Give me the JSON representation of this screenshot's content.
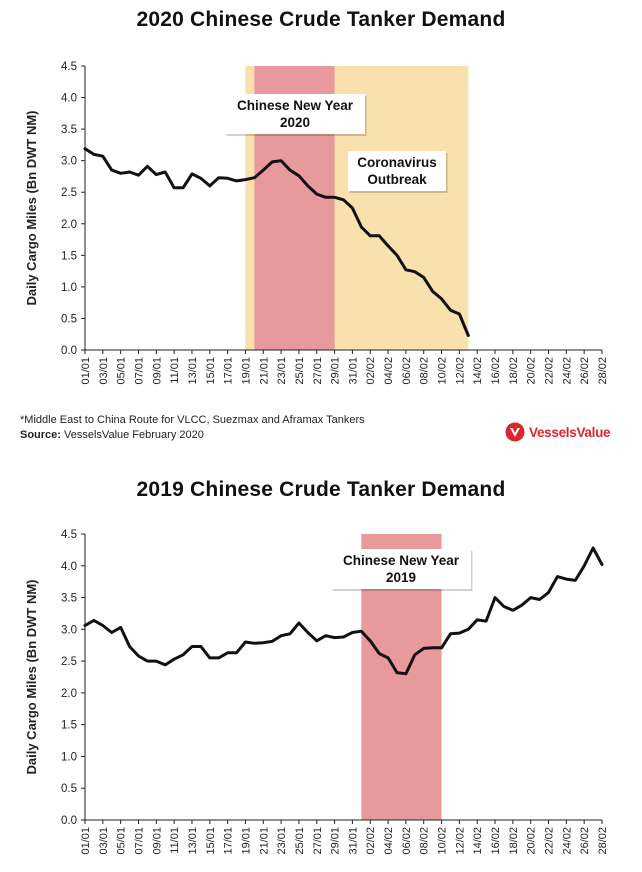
{
  "chart_data": [
    {
      "type": "line",
      "title": "2020 Chinese Crude Tanker Demand",
      "ylabel": "Daily Cargo Miles (Bn DWT NM)",
      "ylim": [
        0,
        4.5
      ],
      "yticks": [
        "0.0",
        "0.5",
        "1.0",
        "1.5",
        "2.0",
        "2.5",
        "3.0",
        "3.5",
        "4.0",
        "4.5"
      ],
      "xticks": [
        "01/01",
        "03/01",
        "05/01",
        "07/01",
        "09/01",
        "11/01",
        "13/01",
        "15/01",
        "17/01",
        "19/01",
        "21/01",
        "23/01",
        "25/01",
        "27/01",
        "29/01",
        "31/01",
        "02/02",
        "04/02",
        "06/02",
        "08/02",
        "10/02",
        "12/02",
        "14/02",
        "16/02",
        "18/02",
        "20/02",
        "22/02",
        "24/02",
        "26/02",
        "28/02"
      ],
      "x": [
        "01/01",
        "02/01",
        "03/01",
        "04/01",
        "05/01",
        "06/01",
        "07/01",
        "08/01",
        "09/01",
        "10/01",
        "11/01",
        "12/01",
        "13/01",
        "14/01",
        "15/01",
        "16/01",
        "17/01",
        "18/01",
        "19/01",
        "20/01",
        "21/01",
        "22/01",
        "23/01",
        "24/01",
        "25/01",
        "26/01",
        "27/01",
        "28/01",
        "29/01",
        "30/01",
        "31/01",
        "01/02",
        "02/02",
        "03/02",
        "04/02",
        "05/02",
        "06/02",
        "07/02",
        "08/02",
        "09/02",
        "10/02",
        "11/02",
        "12/02",
        "13/02"
      ],
      "series": [
        {
          "values": [
            3.19,
            3.1,
            3.07,
            2.85,
            2.8,
            2.82,
            2.77,
            2.91,
            2.78,
            2.82,
            2.57,
            2.57,
            2.79,
            2.72,
            2.6,
            2.73,
            2.72,
            2.68,
            2.7,
            2.73,
            2.85,
            2.98,
            3.0,
            2.85,
            2.76,
            2.6,
            2.47,
            2.42,
            2.42,
            2.38,
            2.25,
            1.95,
            1.81,
            1.81,
            1.65,
            1.5,
            1.27,
            1.24,
            1.15,
            0.93,
            0.81,
            0.63,
            0.57,
            0.23
          ]
        }
      ],
      "bands": [
        {
          "from": "19/01",
          "to": "13/02",
          "color": "#f9e1ad"
        },
        {
          "from": "20/01",
          "to": "29/01",
          "color": "#e8999b"
        }
      ],
      "annotations": [
        {
          "text": [
            "Chinese New Year",
            "2020"
          ]
        },
        {
          "text": [
            "Coronavirus",
            "Outbreak"
          ]
        }
      ],
      "grid": false
    },
    {
      "type": "line",
      "title": "2019 Chinese Crude Tanker Demand",
      "ylabel": "Daily Cargo Miles (Bn DWT NM)",
      "ylim": [
        0,
        4.5
      ],
      "yticks": [
        "0.0",
        "0.5",
        "1.0",
        "1.5",
        "2.0",
        "2.5",
        "3.0",
        "3.5",
        "4.0",
        "4.5"
      ],
      "xticks": [
        "01/01",
        "03/01",
        "05/01",
        "07/01",
        "09/01",
        "11/01",
        "13/01",
        "15/01",
        "17/01",
        "19/01",
        "21/01",
        "23/01",
        "25/01",
        "27/01",
        "29/01",
        "31/01",
        "02/02",
        "04/02",
        "06/02",
        "08/02",
        "10/02",
        "12/02",
        "14/02",
        "16/02",
        "18/02",
        "20/02",
        "22/02",
        "24/02",
        "26/02",
        "28/02"
      ],
      "x": [
        "01/01",
        "02/01",
        "03/01",
        "04/01",
        "05/01",
        "06/01",
        "07/01",
        "08/01",
        "09/01",
        "10/01",
        "11/01",
        "12/01",
        "13/01",
        "14/01",
        "15/01",
        "16/01",
        "17/01",
        "18/01",
        "19/01",
        "20/01",
        "21/01",
        "22/01",
        "23/01",
        "24/01",
        "25/01",
        "26/01",
        "27/01",
        "28/01",
        "29/01",
        "30/01",
        "31/01",
        "01/02",
        "02/02",
        "03/02",
        "04/02",
        "05/02",
        "06/02",
        "07/02",
        "08/02",
        "09/02",
        "10/02",
        "11/02",
        "12/02",
        "13/02",
        "14/02",
        "15/02",
        "16/02",
        "17/02",
        "18/02",
        "19/02",
        "20/02",
        "21/02",
        "22/02",
        "23/02",
        "24/02",
        "25/02",
        "26/02",
        "27/02",
        "28/02"
      ],
      "series": [
        {
          "values": [
            3.06,
            3.14,
            3.06,
            2.95,
            3.03,
            2.73,
            2.58,
            2.5,
            2.5,
            2.44,
            2.53,
            2.6,
            2.73,
            2.73,
            2.55,
            2.55,
            2.63,
            2.63,
            2.8,
            2.78,
            2.79,
            2.81,
            2.9,
            2.93,
            3.1,
            2.95,
            2.82,
            2.9,
            2.87,
            2.88,
            2.95,
            2.97,
            2.82,
            2.62,
            2.55,
            2.32,
            2.3,
            2.6,
            2.7,
            2.71,
            2.71,
            2.93,
            2.94,
            3.0,
            3.15,
            3.13,
            3.5,
            3.36,
            3.3,
            3.38,
            3.5,
            3.47,
            3.58,
            3.83,
            3.79,
            3.77,
            4.0,
            4.28,
            4.02
          ]
        }
      ],
      "bands": [
        {
          "from": "01/02",
          "to": "10/02",
          "color": "#e8999b"
        }
      ],
      "annotations": [
        {
          "text": [
            "Chinese New Year",
            "2019"
          ]
        }
      ],
      "grid": false
    }
  ],
  "footnote": "*Middle East to China Route for VLCC, Suezmax and Aframax Tankers",
  "source_label": "Source:",
  "source_text": " VesselsValue February 2020",
  "logo_text": "VesselsValue",
  "brand_color": "#d9272e"
}
